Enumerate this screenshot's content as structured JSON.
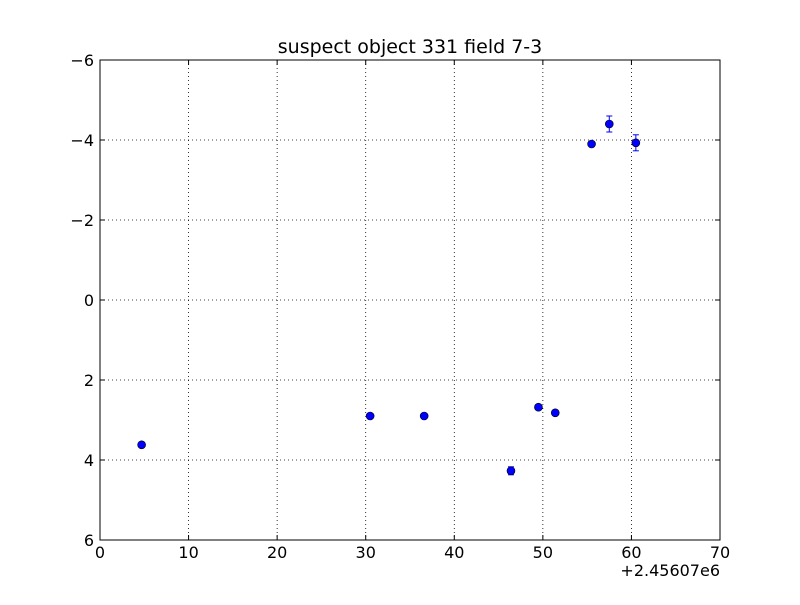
{
  "chart_data": {
    "type": "scatter",
    "title": "suspect object 331 field 7-3",
    "xlabel": "",
    "ylabel": "",
    "x_offset_label": "+2.45607e6",
    "xlim": [
      0,
      70
    ],
    "ylim": [
      6,
      -6
    ],
    "y_inverted": true,
    "grid": true,
    "xticks": [
      0,
      10,
      20,
      30,
      40,
      50,
      60,
      70
    ],
    "xtick_labels": [
      "0",
      "10",
      "20",
      "30",
      "40",
      "50",
      "60",
      "70"
    ],
    "yticks": [
      -6,
      -4,
      -2,
      0,
      2,
      4,
      6
    ],
    "ytick_labels": [
      "−6",
      "−4",
      "−2",
      "0",
      "2",
      "4",
      "6"
    ],
    "marker_color": "#0000ff",
    "series": [
      {
        "points": [
          {
            "x": 4.7,
            "y": 3.62,
            "err": 0.05
          },
          {
            "x": 30.5,
            "y": 2.9,
            "err": 0.05
          },
          {
            "x": 36.6,
            "y": 2.9,
            "err": 0.05
          },
          {
            "x": 46.4,
            "y": 4.27,
            "err": 0.1
          },
          {
            "x": 49.5,
            "y": 2.68,
            "err": 0.05
          },
          {
            "x": 51.4,
            "y": 2.82,
            "err": 0.05
          },
          {
            "x": 55.5,
            "y": -3.9,
            "err": 0.05
          },
          {
            "x": 57.5,
            "y": -4.4,
            "err": 0.2
          },
          {
            "x": 60.5,
            "y": -3.93,
            "err": 0.2
          }
        ]
      }
    ]
  }
}
